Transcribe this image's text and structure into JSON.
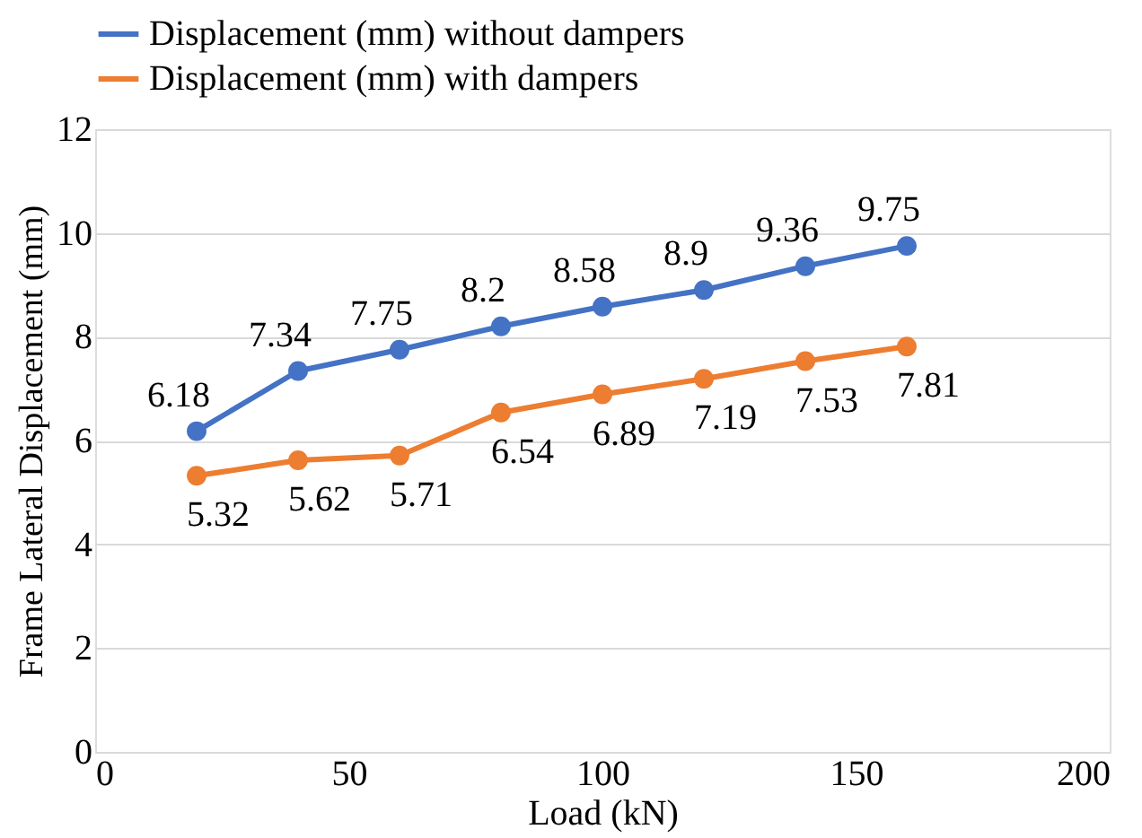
{
  "chart_data": {
    "type": "line",
    "xlabel": "Load (kN)",
    "ylabel": "Frame Lateral Displacement (mm)",
    "x": [
      20,
      40,
      60,
      80,
      100,
      120,
      140,
      160
    ],
    "series": [
      {
        "name": "Displacement (mm) without dampers",
        "color": "#4472c4",
        "values": [
          6.18,
          7.34,
          7.75,
          8.2,
          8.58,
          8.9,
          9.36,
          9.75
        ]
      },
      {
        "name": "Displacement (mm) with dampers",
        "color": "#ed7d31",
        "values": [
          5.32,
          5.62,
          5.71,
          6.54,
          6.89,
          7.19,
          7.53,
          7.81
        ]
      }
    ],
    "xlim": [
      0,
      200
    ],
    "xticks": [
      0,
      50,
      100,
      150,
      200
    ],
    "ylim": [
      0,
      12
    ],
    "yticks": [
      0,
      2,
      4,
      6,
      8,
      10,
      12
    ],
    "grid": "y",
    "legend": "top",
    "marker": "circle",
    "line_style": "solid",
    "data_labels": true
  }
}
